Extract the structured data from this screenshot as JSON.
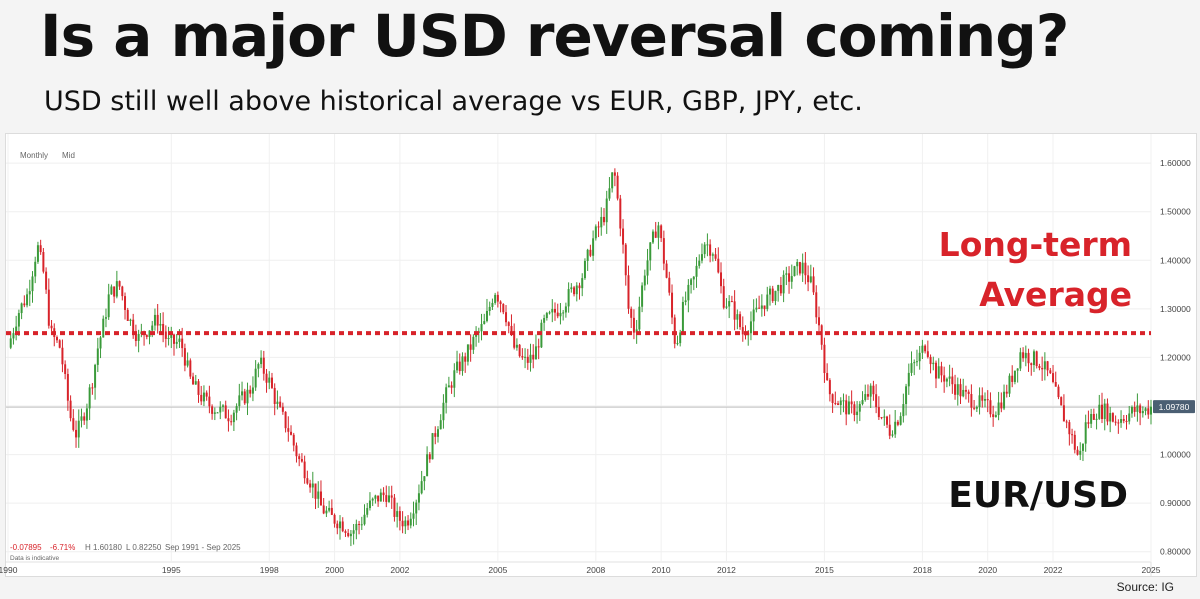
{
  "header": {
    "title": "Is a major USD reversal coming?",
    "subtitle": "USD still well above historical average vs EUR, GBP, JPY, etc."
  },
  "chart_meta": {
    "interval": "Monthly",
    "price_type": "Mid",
    "stats": {
      "change": "-0.07895",
      "change_pct": "-6.71%",
      "high": "H 1.60180",
      "low": "L 0.82250",
      "range": "Sep 1991 - Sep 2025",
      "note": "Data is indicative"
    },
    "last_price_label": "1.09780",
    "source": "Source: IG"
  },
  "colors": {
    "up": "#3a9a3a",
    "down": "#d8232a",
    "average_line": "#d8232a",
    "annotation_red": "#d8232a",
    "price_tag_bg": "#4b5f73"
  },
  "chart_data": {
    "type": "line",
    "title": "EUR/USD",
    "xlim": [
      1990,
      2025
    ],
    "ylim": [
      0.75,
      1.66
    ],
    "y_ticks": [
      "1.60000",
      "1.50000",
      "1.40000",
      "1.30000",
      "1.20000",
      "1.10000",
      "1.00000",
      "0.90000",
      "0.80000"
    ],
    "x_ticks": [
      "1990",
      "1995",
      "1998",
      "2000",
      "2002",
      "2005",
      "2008",
      "2010",
      "2012",
      "2015",
      "2018",
      "2020",
      "2022",
      "2025"
    ],
    "current_price": 1.0978,
    "long_term_average": 1.25,
    "annotations": [
      "Long-term Average"
    ],
    "series": [
      {
        "x": [
          1990.0,
          1990.3,
          1990.6,
          1990.9,
          1991.1,
          1991.3,
          1991.6,
          1991.9,
          1992.1,
          1992.4,
          1992.6,
          1992.75,
          1992.9,
          1993.1,
          1993.4,
          1993.7,
          1994.0,
          1994.3,
          1994.6,
          1994.9,
          1995.3,
          1995.6,
          1995.9,
          1996.2,
          1996.5,
          1996.8,
          1997.1,
          1997.4,
          1997.7,
          1998.0,
          1998.3,
          1998.6,
          1998.9,
          1999.0,
          1999.3,
          1999.6,
          1999.9,
          2000.2,
          2000.5,
          2000.8,
          2001.0,
          2001.3,
          2001.6,
          2001.9,
          2002.2,
          2002.5,
          2002.8,
          2003.1,
          2003.4,
          2003.7,
          2004.0,
          2004.3,
          2004.6,
          2004.9,
          2005.2,
          2005.5,
          2005.8,
          2006.1,
          2006.4,
          2006.7,
          2007.0,
          2007.3,
          2007.6,
          2007.9,
          2008.3,
          2008.55,
          2008.8,
          2009.0,
          2009.2,
          2009.5,
          2009.9,
          2010.2,
          2010.45,
          2010.7,
          2011.0,
          2011.3,
          2011.6,
          2011.9,
          2012.2,
          2012.5,
          2012.8,
          2013.1,
          2013.4,
          2013.7,
          2014.0,
          2014.3,
          2014.6,
          2014.9,
          2015.1,
          2015.4,
          2015.8,
          2016.1,
          2016.4,
          2016.8,
          2017.0,
          2017.3,
          2017.6,
          2017.9,
          2018.1,
          2018.4,
          2018.7,
          2019.0,
          2019.3,
          2019.6,
          2019.9,
          2020.2,
          2020.5,
          2020.8,
          2021.0,
          2021.3,
          2021.6,
          2021.9,
          2022.2,
          2022.5,
          2022.8,
          2023.0,
          2023.3,
          2023.6,
          2023.9,
          2024.2,
          2024.5,
          2024.8,
          2025.0
        ],
        "values": [
          1.22,
          1.29,
          1.33,
          1.43,
          1.37,
          1.25,
          1.22,
          1.08,
          1.04,
          1.1,
          1.16,
          1.22,
          1.26,
          1.33,
          1.35,
          1.28,
          1.24,
          1.26,
          1.28,
          1.23,
          1.23,
          1.15,
          1.12,
          1.1,
          1.09,
          1.08,
          1.11,
          1.13,
          1.19,
          1.15,
          1.09,
          1.05,
          0.99,
          0.98,
          0.94,
          0.89,
          0.87,
          0.86,
          0.84,
          0.86,
          0.89,
          0.91,
          0.92,
          0.87,
          0.86,
          0.91,
          0.98,
          1.05,
          1.12,
          1.17,
          1.2,
          1.24,
          1.27,
          1.34,
          1.3,
          1.22,
          1.19,
          1.2,
          1.27,
          1.29,
          1.31,
          1.34,
          1.37,
          1.44,
          1.5,
          1.59,
          1.45,
          1.3,
          1.25,
          1.38,
          1.48,
          1.35,
          1.22,
          1.31,
          1.36,
          1.44,
          1.42,
          1.32,
          1.3,
          1.25,
          1.28,
          1.31,
          1.33,
          1.35,
          1.37,
          1.39,
          1.35,
          1.24,
          1.13,
          1.11,
          1.09,
          1.1,
          1.13,
          1.07,
          1.05,
          1.08,
          1.17,
          1.2,
          1.23,
          1.17,
          1.16,
          1.14,
          1.12,
          1.11,
          1.1,
          1.09,
          1.12,
          1.17,
          1.21,
          1.2,
          1.19,
          1.16,
          1.1,
          1.05,
          0.99,
          1.06,
          1.09,
          1.09,
          1.07,
          1.08,
          1.09,
          1.09,
          1.0978
        ]
      }
    ]
  }
}
